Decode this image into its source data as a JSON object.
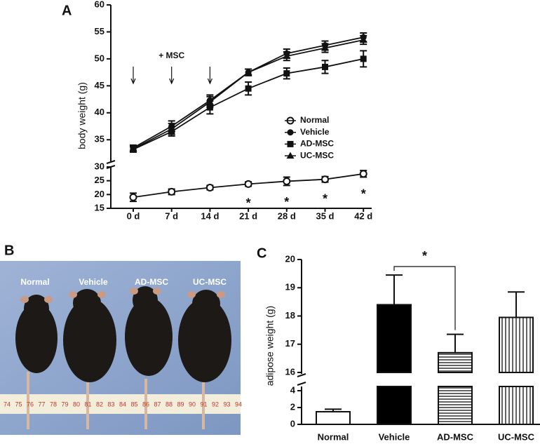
{
  "panel_labels": [
    "A",
    "B",
    "C"
  ],
  "chart_data": [
    {
      "type": "line",
      "ylabel": "body weight (g)",
      "categories": [
        "0 d",
        "7 d",
        "14 d",
        "21 d",
        "28 d",
        "35 d",
        "42 d"
      ],
      "y_segments": [
        {
          "ylim": [
            15,
            30
          ],
          "yticks": [
            15,
            20,
            25,
            30
          ]
        },
        {
          "ylim": [
            31,
            60
          ],
          "yticks": [
            35,
            40,
            45,
            50,
            55,
            60
          ]
        }
      ],
      "series": [
        {
          "name": "Normal",
          "marker": "open-circle",
          "color": "#111111",
          "values": [
            19,
            21,
            22.5,
            23.8,
            24.8,
            25.5,
            27.5
          ],
          "errors": [
            1.5,
            1,
            0.8,
            0.8,
            1.5,
            1,
            1.2
          ]
        },
        {
          "name": "Vehicle",
          "marker": "circle",
          "color": "#111111",
          "values": [
            33.5,
            37.5,
            42.3,
            47.5,
            51,
            52.5,
            54
          ],
          "errors": [
            0.5,
            1,
            1,
            0.6,
            0.8,
            0.8,
            0.8
          ]
        },
        {
          "name": "AD-MSC",
          "marker": "square",
          "color": "#111111",
          "values": [
            33.2,
            36.5,
            41,
            44.5,
            47.3,
            48.5,
            50
          ],
          "errors": [
            0.5,
            0.8,
            1.2,
            1.2,
            1,
            1.2,
            1.5
          ]
        },
        {
          "name": "UC-MSC",
          "marker": "triangle",
          "color": "#111111",
          "values": [
            33.3,
            37,
            42,
            47.5,
            50.5,
            52,
            53.5
          ],
          "errors": [
            0.5,
            1,
            1,
            0.6,
            0.8,
            0.8,
            0.8
          ]
        }
      ],
      "treatment_label": "+ MSC",
      "significance": [
        null,
        null,
        null,
        "*",
        "*",
        "*",
        "*"
      ]
    },
    {
      "type": "bar",
      "ylabel": "adipose weight (g)",
      "categories": [
        "Normal",
        "Vehicle",
        "AD-MSC",
        "UC-MSC"
      ],
      "values": [
        1.5,
        18.4,
        16.7,
        17.95
      ],
      "errors": [
        0.3,
        1.05,
        0.65,
        0.9
      ],
      "fills": [
        "white",
        "black",
        "horizontal-stripes",
        "vertical-stripes"
      ],
      "y_segments": [
        {
          "ylim": [
            0,
            4.5
          ],
          "yticks": [
            0,
            2,
            4
          ]
        },
        {
          "ylim": [
            16,
            20
          ],
          "yticks": [
            16,
            17,
            18,
            19,
            20
          ]
        }
      ],
      "significance": {
        "from": 1,
        "to": 2,
        "label": "*"
      }
    }
  ],
  "photo": {
    "labels": [
      "Normal",
      "Vehicle",
      "AD-MSC",
      "UC-MSC"
    ],
    "ruler": [
      "74",
      "75",
      "76",
      "77",
      "78",
      "79",
      "80",
      "81",
      "82",
      "83",
      "84",
      "85",
      "86",
      "87",
      "88",
      "89",
      "90",
      "91",
      "92",
      "93",
      "94"
    ]
  }
}
